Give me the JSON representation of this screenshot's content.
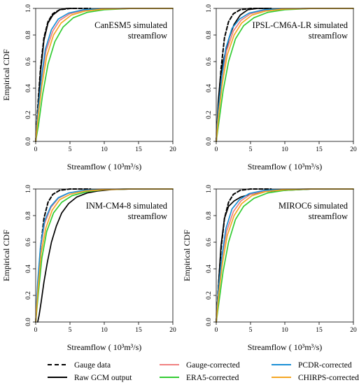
{
  "legend": [
    {
      "label": "Gauge data",
      "color": "#000000",
      "dash": true
    },
    {
      "label": "Raw GCM output",
      "color": "#000000",
      "dash": false
    },
    {
      "label": "Gauge-corrected",
      "color": "#f08080",
      "dash": false
    },
    {
      "label": "ERA5-corrected",
      "color": "#33cc33",
      "dash": false
    },
    {
      "label": "PCDR-corrected",
      "color": "#1a8fd6",
      "dash": false
    },
    {
      "label": "CHIRPS-corrected",
      "color": "#f5a623",
      "dash": false
    }
  ],
  "chart_data": [
    {
      "type": "line",
      "title_lines": [
        "CanESM5 simulated",
        "streamflow"
      ],
      "xlabel": "Streamflow ( 10³m³/s)",
      "ylabel": "Empirical CDF",
      "xlim": [
        0,
        20
      ],
      "ylim": [
        0,
        1
      ],
      "xticks": [
        "0",
        "5",
        "10",
        "15",
        "20"
      ],
      "yticks": [
        "0.0",
        "0.2",
        "0.4",
        "0.6",
        "0.8",
        "1.0"
      ],
      "series": [
        {
          "name": "Gauge data",
          "color": "#000000",
          "dash": true,
          "x": [
            0,
            0.3,
            0.7,
            1.2,
            1.8,
            2.5,
            3.5,
            5,
            8
          ],
          "y": [
            0,
            0.25,
            0.55,
            0.78,
            0.9,
            0.96,
            0.99,
            1.0,
            1.0
          ]
        },
        {
          "name": "Raw GCM output",
          "color": "#000000",
          "dash": false,
          "x": [
            0,
            0.3,
            0.7,
            1.2,
            1.8,
            2.5,
            3.5,
            4.5,
            6
          ],
          "y": [
            0,
            0.22,
            0.52,
            0.76,
            0.89,
            0.95,
            0.99,
            1.0,
            1.0
          ]
        },
        {
          "name": "Gauge-corrected",
          "color": "#f08080",
          "dash": false,
          "x": [
            0,
            0.3,
            0.8,
            1.5,
            2.5,
            3.5,
            5,
            7,
            10,
            14,
            20
          ],
          "y": [
            0,
            0.2,
            0.45,
            0.68,
            0.83,
            0.91,
            0.96,
            0.985,
            0.995,
            1.0,
            1.0
          ]
        },
        {
          "name": "ERA5-corrected",
          "color": "#33cc33",
          "dash": false,
          "x": [
            0,
            0.4,
            1.0,
            1.8,
            2.8,
            4,
            5.5,
            7.5,
            10,
            14,
            20
          ],
          "y": [
            0,
            0.12,
            0.35,
            0.58,
            0.75,
            0.86,
            0.93,
            0.97,
            0.99,
            1.0,
            1.0
          ]
        },
        {
          "name": "PCDR-corrected",
          "color": "#1a8fd6",
          "dash": false,
          "x": [
            0,
            0.3,
            0.8,
            1.4,
            2.3,
            3.3,
            4.8,
            7,
            10,
            14,
            20
          ],
          "y": [
            0,
            0.2,
            0.46,
            0.69,
            0.84,
            0.92,
            0.965,
            0.99,
            0.997,
            1.0,
            1.0
          ]
        },
        {
          "name": "CHIRPS-corrected",
          "color": "#f5a623",
          "dash": false,
          "x": [
            0,
            0.35,
            0.9,
            1.6,
            2.6,
            3.7,
            5.2,
            7.2,
            10,
            14,
            20
          ],
          "y": [
            0,
            0.18,
            0.42,
            0.64,
            0.8,
            0.89,
            0.95,
            0.98,
            0.995,
            1.0,
            1.0
          ]
        }
      ]
    },
    {
      "type": "line",
      "title_lines": [
        "IPSL-CM6A-LR simulated",
        "streamflow"
      ],
      "xlabel": "Streamflow ( 10³m³/s)",
      "ylabel": "",
      "xlim": [
        0,
        20
      ],
      "ylim": [
        0,
        1
      ],
      "xticks": [
        "0",
        "5",
        "10",
        "15",
        "20"
      ],
      "yticks": [
        "0.0",
        "0.2",
        "0.4",
        "0.6",
        "0.8",
        "1.0"
      ],
      "series": [
        {
          "name": "Gauge data",
          "color": "#000000",
          "dash": true,
          "x": [
            0,
            0.3,
            0.7,
            1.2,
            1.8,
            2.5,
            3.5,
            5,
            8
          ],
          "y": [
            0,
            0.25,
            0.55,
            0.78,
            0.9,
            0.96,
            0.99,
            1.0,
            1.0
          ]
        },
        {
          "name": "Raw GCM output",
          "color": "#000000",
          "dash": false,
          "x": [
            0,
            0.3,
            0.6,
            1.0,
            1.4,
            1.9,
            2.6,
            3.5,
            4.6,
            6,
            8
          ],
          "y": [
            0,
            0.3,
            0.48,
            0.6,
            0.68,
            0.78,
            0.88,
            0.95,
            0.99,
            1.0,
            1.0
          ]
        },
        {
          "name": "Gauge-corrected",
          "color": "#f08080",
          "dash": false,
          "x": [
            0,
            0.3,
            0.8,
            1.5,
            2.5,
            3.6,
            5,
            7,
            10,
            14,
            20
          ],
          "y": [
            0,
            0.22,
            0.47,
            0.68,
            0.83,
            0.91,
            0.96,
            0.985,
            0.995,
            1.0,
            1.0
          ]
        },
        {
          "name": "ERA5-corrected",
          "color": "#33cc33",
          "dash": false,
          "x": [
            0,
            0.4,
            1.0,
            1.8,
            2.8,
            4,
            5.5,
            7.5,
            10,
            14,
            20
          ],
          "y": [
            0,
            0.15,
            0.38,
            0.6,
            0.77,
            0.87,
            0.93,
            0.97,
            0.99,
            1.0,
            1.0
          ]
        },
        {
          "name": "PCDR-corrected",
          "color": "#1a8fd6",
          "dash": false,
          "x": [
            0,
            0.3,
            0.8,
            1.4,
            2.3,
            3.4,
            4.8,
            7,
            10,
            14,
            20
          ],
          "y": [
            0,
            0.23,
            0.48,
            0.7,
            0.85,
            0.92,
            0.965,
            0.99,
            0.997,
            1.0,
            1.0
          ]
        },
        {
          "name": "CHIRPS-corrected",
          "color": "#f5a623",
          "dash": false,
          "x": [
            0,
            0.35,
            0.9,
            1.6,
            2.6,
            3.7,
            5.2,
            7.2,
            10,
            14,
            20
          ],
          "y": [
            0,
            0.2,
            0.44,
            0.65,
            0.8,
            0.89,
            0.95,
            0.98,
            0.995,
            1.0,
            1.0
          ]
        }
      ]
    },
    {
      "type": "line",
      "title_lines": [
        "INM-CM4-8 simulated",
        "streamflow"
      ],
      "xlabel": "Streamflow ( 10³m³/s)",
      "ylabel": "Empirical CDF",
      "xlim": [
        0,
        20
      ],
      "ylim": [
        0,
        1
      ],
      "xticks": [
        "0",
        "5",
        "10",
        "15",
        "20"
      ],
      "yticks": [
        "0.0",
        "0.2",
        "0.4",
        "0.6",
        "0.8",
        "1.0"
      ],
      "series": [
        {
          "name": "Gauge data",
          "color": "#000000",
          "dash": true,
          "x": [
            0,
            0.3,
            0.7,
            1.2,
            1.8,
            2.5,
            3.5,
            5,
            8
          ],
          "y": [
            0,
            0.25,
            0.55,
            0.78,
            0.9,
            0.96,
            0.99,
            1.0,
            1.0
          ]
        },
        {
          "name": "Raw GCM output",
          "color": "#000000",
          "dash": false,
          "x": [
            0.3,
            0.5,
            0.8,
            1.2,
            1.7,
            2.3,
            3.0,
            3.8,
            4.8,
            6,
            7.5,
            9,
            11,
            14,
            17
          ],
          "y": [
            0,
            0.05,
            0.15,
            0.3,
            0.45,
            0.6,
            0.72,
            0.82,
            0.89,
            0.94,
            0.97,
            0.985,
            0.995,
            1.0,
            1.0
          ]
        },
        {
          "name": "Gauge-corrected",
          "color": "#f08080",
          "dash": false,
          "x": [
            0,
            0.3,
            0.7,
            1.3,
            2.2,
            3.3,
            4.8,
            7,
            10,
            14,
            20
          ],
          "y": [
            0,
            0.28,
            0.55,
            0.74,
            0.86,
            0.93,
            0.97,
            0.99,
            0.997,
            1.0,
            1.0
          ]
        },
        {
          "name": "ERA5-corrected",
          "color": "#33cc33",
          "dash": false,
          "x": [
            0,
            0.4,
            0.9,
            1.6,
            2.6,
            3.8,
            5.3,
            7.5,
            10,
            14,
            20
          ],
          "y": [
            0,
            0.22,
            0.48,
            0.68,
            0.82,
            0.9,
            0.95,
            0.98,
            0.995,
            1.0,
            1.0
          ]
        },
        {
          "name": "PCDR-corrected",
          "color": "#1a8fd6",
          "dash": false,
          "x": [
            0,
            0.3,
            0.7,
            1.3,
            2.2,
            3.3,
            4.8,
            7,
            10,
            14,
            20
          ],
          "y": [
            0,
            0.3,
            0.57,
            0.76,
            0.87,
            0.935,
            0.97,
            0.99,
            0.997,
            1.0,
            1.0
          ]
        },
        {
          "name": "CHIRPS-corrected",
          "color": "#f5a623",
          "dash": false,
          "x": [
            0,
            0.35,
            0.8,
            1.5,
            2.4,
            3.5,
            5,
            7.2,
            10,
            14,
            20
          ],
          "y": [
            0,
            0.25,
            0.52,
            0.71,
            0.84,
            0.92,
            0.96,
            0.985,
            0.995,
            1.0,
            1.0
          ]
        }
      ]
    },
    {
      "type": "line",
      "title_lines": [
        "MIROC6 simulated",
        "streamflow"
      ],
      "xlabel": "Streamflow ( 10³m³/s)",
      "ylabel": "Empirical CDF",
      "xlim": [
        0,
        20
      ],
      "ylim": [
        0,
        1
      ],
      "xticks": [
        "0",
        "5",
        "10",
        "15",
        "20"
      ],
      "yticks": [
        "0.0",
        "0.2",
        "0.4",
        "0.6",
        "0.8",
        "1.0"
      ],
      "series": [
        {
          "name": "Gauge data",
          "color": "#000000",
          "dash": true,
          "x": [
            0,
            0.3,
            0.7,
            1.2,
            1.8,
            2.5,
            3.5,
            5,
            8
          ],
          "y": [
            0,
            0.25,
            0.55,
            0.78,
            0.9,
            0.96,
            0.99,
            1.0,
            1.0
          ]
        },
        {
          "name": "Raw GCM output",
          "color": "#000000",
          "dash": false,
          "x": [
            0,
            0.3,
            0.7,
            1.2,
            1.8,
            2.6,
            3.6,
            5,
            7,
            10,
            14,
            20
          ],
          "y": [
            0,
            0.25,
            0.58,
            0.78,
            0.87,
            0.91,
            0.94,
            0.96,
            0.98,
            0.99,
            1.0,
            1.0
          ]
        },
        {
          "name": "Gauge-corrected",
          "color": "#f08080",
          "dash": false,
          "x": [
            0,
            0.3,
            0.8,
            1.5,
            2.5,
            3.6,
            5,
            7,
            10,
            14,
            20
          ],
          "y": [
            0,
            0.22,
            0.47,
            0.68,
            0.83,
            0.91,
            0.96,
            0.985,
            0.995,
            1.0,
            1.0
          ]
        },
        {
          "name": "ERA5-corrected",
          "color": "#33cc33",
          "dash": false,
          "x": [
            0,
            0.4,
            1.0,
            1.8,
            2.8,
            4,
            5.5,
            7.5,
            10,
            14,
            20
          ],
          "y": [
            0,
            0.15,
            0.38,
            0.6,
            0.77,
            0.87,
            0.93,
            0.97,
            0.99,
            1.0,
            1.0
          ]
        },
        {
          "name": "PCDR-corrected",
          "color": "#1a8fd6",
          "dash": false,
          "x": [
            0,
            0.3,
            0.8,
            1.4,
            2.3,
            3.4,
            4.8,
            7,
            10,
            14,
            20
          ],
          "y": [
            0,
            0.23,
            0.48,
            0.7,
            0.85,
            0.92,
            0.965,
            0.99,
            0.997,
            1.0,
            1.0
          ]
        },
        {
          "name": "CHIRPS-corrected",
          "color": "#f5a623",
          "dash": false,
          "x": [
            0,
            0.35,
            0.9,
            1.6,
            2.6,
            3.7,
            5.2,
            7.2,
            10,
            14,
            20
          ],
          "y": [
            0,
            0.2,
            0.44,
            0.65,
            0.8,
            0.89,
            0.95,
            0.98,
            0.995,
            1.0,
            1.0
          ]
        }
      ]
    }
  ]
}
